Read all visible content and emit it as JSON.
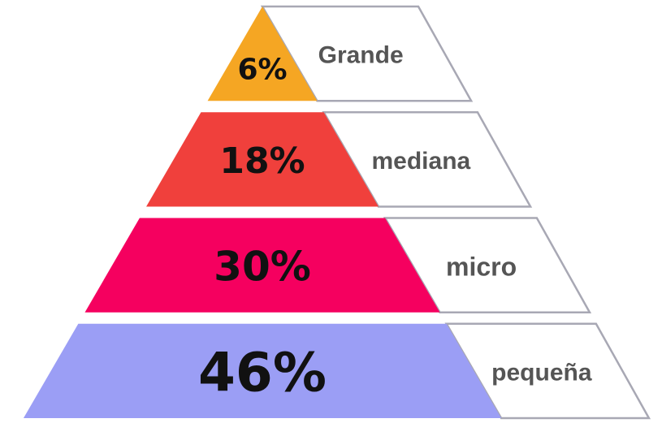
{
  "chart_data": {
    "type": "pyramid",
    "categories": [
      "Grande",
      "mediana",
      "micro",
      "pequeña"
    ],
    "values": [
      6,
      18,
      30,
      46
    ],
    "value_labels": [
      "6%",
      "18%",
      "30%",
      "46%"
    ],
    "colors": [
      "#f5a623",
      "#f0403c",
      "#f5005f",
      "#9b9ef5"
    ]
  }
}
